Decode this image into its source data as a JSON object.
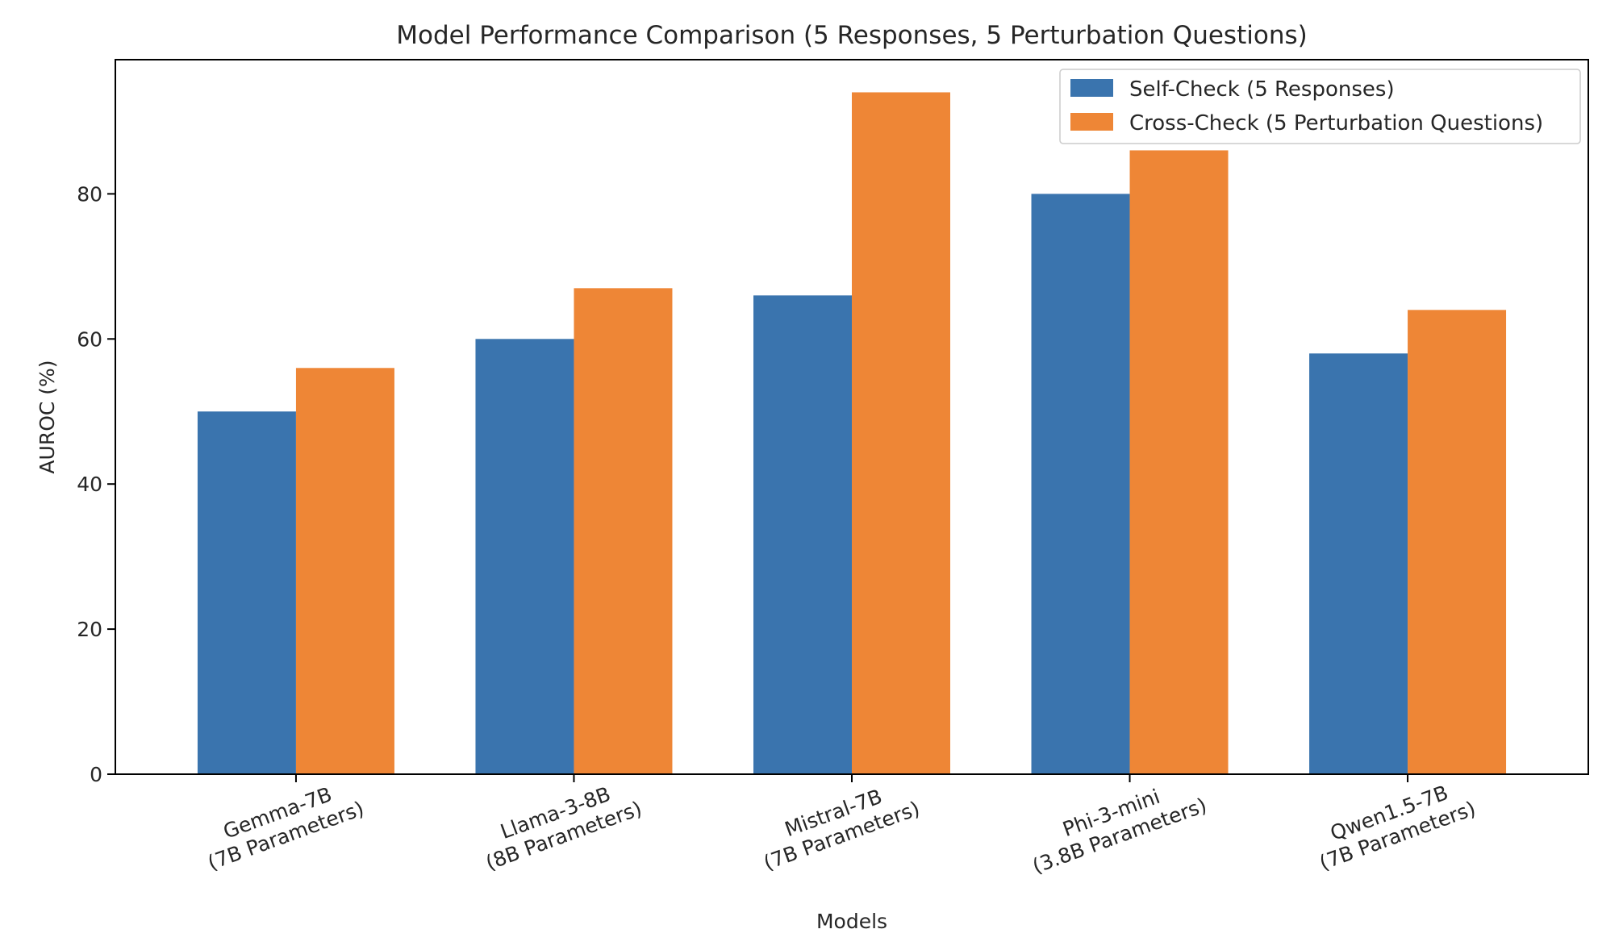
{
  "chart_data": {
    "type": "bar",
    "title": "Model Performance Comparison (5 Responses, 5 Perturbation Questions)",
    "xlabel": "Models",
    "ylabel": "AUROC (%)",
    "ylim": [
      0,
      98.5
    ],
    "yticks": [
      0,
      20,
      40,
      60,
      80
    ],
    "categories": [
      [
        "Gemma-7B",
        "(7B Parameters)"
      ],
      [
        "Llama-3-8B",
        "(8B Parameters)"
      ],
      [
        "Mistral-7B",
        "(7B Parameters)"
      ],
      [
        "Phi-3-mini",
        "(3.8B Parameters)"
      ],
      [
        "Qwen1.5-7B",
        "(7B Parameters)"
      ]
    ],
    "series": [
      {
        "name": "Self-Check (5 Responses)",
        "color": "#3a74ae",
        "values": [
          50,
          60,
          66,
          80,
          58
        ]
      },
      {
        "name": "Cross-Check (5 Perturbation Questions)",
        "color": "#ee8636",
        "values": [
          56,
          67,
          94,
          86,
          64
        ]
      }
    ],
    "grid": false,
    "legend": "top-right",
    "x_tick_rotation_deg": -20
  }
}
